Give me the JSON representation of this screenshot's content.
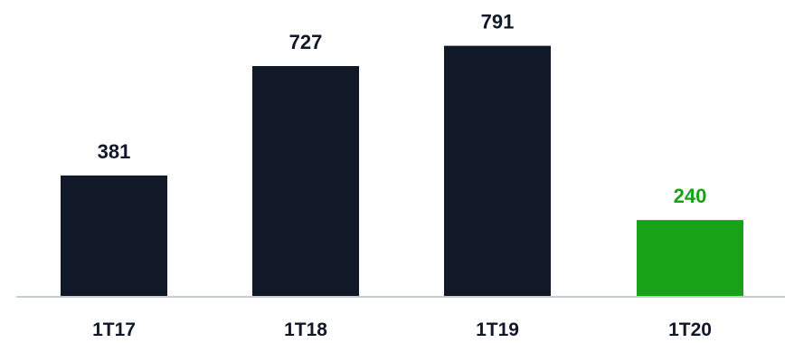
{
  "chart_data": {
    "type": "bar",
    "categories": [
      "1T17",
      "1T18",
      "1T19",
      "1T20"
    ],
    "values": [
      381,
      727,
      791,
      240
    ],
    "title": "",
    "xlabel": "",
    "ylabel": "",
    "ylim": [
      0,
      850
    ],
    "grid": false,
    "legend": "none",
    "value_labels": [
      "381",
      "727",
      "791",
      "240"
    ],
    "bar_colors": [
      "#111827",
      "#111827",
      "#111827",
      "#16a316"
    ],
    "label_colors": [
      "#111827",
      "#111827",
      "#111827",
      "#16a316"
    ],
    "axis_color": "#c5cbd6"
  }
}
